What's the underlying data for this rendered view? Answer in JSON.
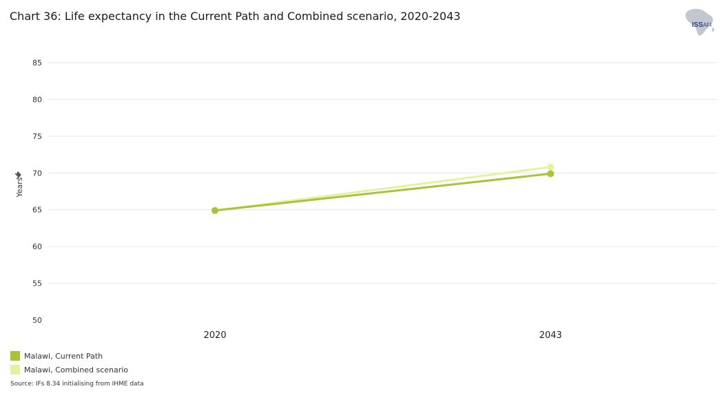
{
  "title": "Chart 36: Life expectancy in the Current Path and Combined scenario, 2020-2043",
  "logo": {
    "primary": "ISS",
    "secondary": "AFI"
  },
  "source": "Source: IFs 8.34 initialising from IHME data",
  "colors": {
    "current_path": "#a8c23a",
    "combined": "#e4f2a0",
    "grid": "#e6e6e6"
  },
  "chart_data": {
    "type": "line",
    "title": "Chart 36: Life expectancy in the Current Path and Combined scenario, 2020-2043",
    "xlabel": "",
    "ylabel": "Years",
    "categories": [
      "2020",
      "2043"
    ],
    "ylim": [
      50,
      85
    ],
    "yticks": [
      50,
      55,
      60,
      65,
      70,
      75,
      80,
      85
    ],
    "grid": true,
    "legend_position": "bottom-left",
    "series": [
      {
        "name": "Malawi, Current Path",
        "color": "#a8c23a",
        "values": [
          64.9,
          69.9
        ]
      },
      {
        "name": "Malawi, Combined scenario",
        "color": "#e4f2a0",
        "values": [
          64.9,
          70.8
        ]
      }
    ]
  }
}
